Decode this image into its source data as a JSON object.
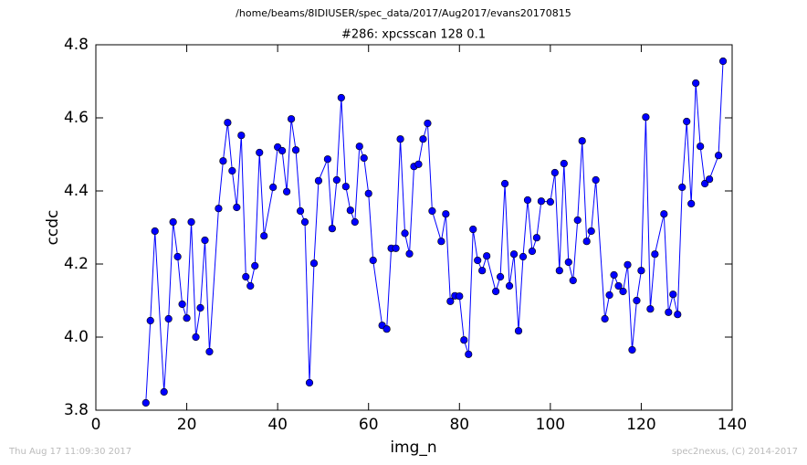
{
  "chart_data": {
    "type": "line",
    "suptitle": "/home/beams/8IDIUSER/spec_data/2017/Aug2017/evans20170815",
    "title": "#286: xpcsscan 128 0.1",
    "xlabel": "img_n",
    "ylabel": "ccdc",
    "footer_left": "Thu Aug 17 11:09:30 2017",
    "footer_right": "spec2nexus, (C) 2014-2017",
    "xlim": [
      0,
      140
    ],
    "xticks": [
      0,
      20,
      40,
      60,
      80,
      100,
      120,
      140
    ],
    "ylim": [
      3.8,
      4.8
    ],
    "yticks": [
      3.8,
      {
        "value": 4,
        "label": "4.0"
      },
      4.2,
      4.4,
      4.6,
      4.8
    ],
    "grid": false,
    "series": [
      {
        "color": "#0000ff",
        "x": [
          11,
          12,
          13,
          15,
          16,
          17,
          18,
          19,
          20,
          21,
          22,
          23,
          24,
          25,
          27,
          28,
          29,
          30,
          31,
          32,
          33,
          34,
          35,
          36,
          37,
          39,
          40,
          41,
          42,
          43,
          44,
          45,
          46,
          47,
          48,
          49,
          51,
          52,
          53,
          54,
          55,
          56,
          57,
          58,
          59,
          60,
          61,
          63,
          64,
          65,
          66,
          67,
          68,
          69,
          70,
          71,
          72,
          73,
          74,
          76,
          77,
          78,
          79,
          80,
          81,
          82,
          83,
          84,
          85,
          86,
          88,
          89,
          90,
          91,
          92,
          93,
          94,
          95,
          96,
          97,
          98,
          100,
          101,
          102,
          103,
          104,
          105,
          106,
          107,
          108,
          109,
          110,
          112,
          113,
          114,
          115,
          116,
          117,
          118,
          119,
          120,
          121,
          122,
          123,
          125,
          126,
          127,
          128,
          129,
          130,
          131,
          132,
          133,
          134,
          135,
          137,
          138
        ],
        "values": [
          3.82,
          4.045,
          4.29,
          3.85,
          4.05,
          4.315,
          4.22,
          4.09,
          4.052,
          4.315,
          4.0,
          4.08,
          4.265,
          3.96,
          4.352,
          4.482,
          4.587,
          4.455,
          4.355,
          4.552,
          4.165,
          4.14,
          4.195,
          4.505,
          4.277,
          4.41,
          4.52,
          4.51,
          4.398,
          4.597,
          4.512,
          4.345,
          4.315,
          3.875,
          4.202,
          4.428,
          4.487,
          4.297,
          4.43,
          4.655,
          4.412,
          4.347,
          4.315,
          4.522,
          4.49,
          4.393,
          4.21,
          4.032,
          4.022,
          4.243,
          4.243,
          4.542,
          4.284,
          4.228,
          4.467,
          4.473,
          4.542,
          4.585,
          4.345,
          4.262,
          4.337,
          4.098,
          4.113,
          4.112,
          3.992,
          3.953,
          4.295,
          4.21,
          4.182,
          4.222,
          4.125,
          4.165,
          4.42,
          4.14,
          4.227,
          4.017,
          4.22,
          4.375,
          4.235,
          4.272,
          4.372,
          4.37,
          4.45,
          4.182,
          4.475,
          4.205,
          4.155,
          4.32,
          4.537,
          4.262,
          4.29,
          4.43,
          4.05,
          4.115,
          4.17,
          4.14,
          4.125,
          4.198,
          3.965,
          4.1,
          4.182,
          4.602,
          4.077,
          4.227,
          4.337,
          4.068,
          4.117,
          4.062,
          4.41,
          4.59,
          4.365,
          4.695,
          4.522,
          4.42,
          4.432,
          4.497,
          4.755
        ]
      }
    ]
  }
}
